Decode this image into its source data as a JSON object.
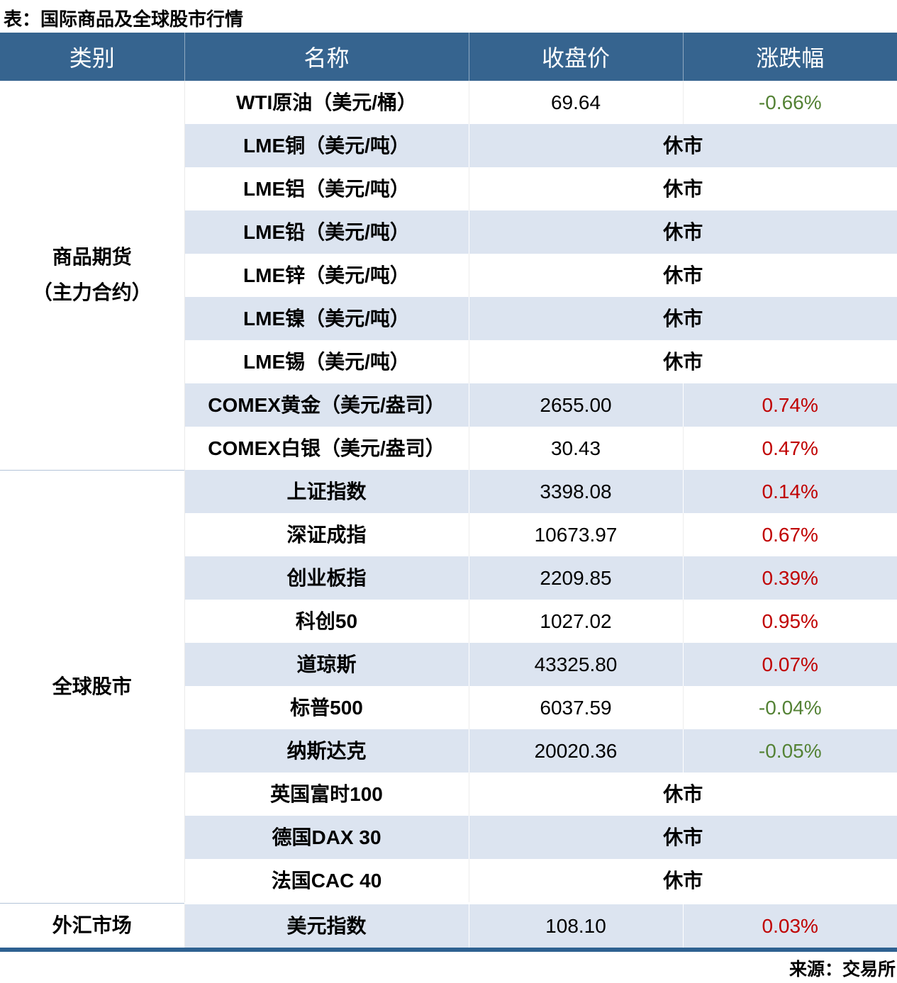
{
  "title": "表：国际商品及全球股市行情",
  "source": "来源：交易所",
  "colors": {
    "header_bg": "#36648F",
    "header_text": "#FFFFFF",
    "alt_row_bg": "#DCE4F0",
    "up_text": "#C00000",
    "down_text": "#548235",
    "bottom_bar": "#2E6191"
  },
  "table": {
    "headers": [
      "类别",
      "名称",
      "收盘价",
      "涨跌幅"
    ],
    "sections": [
      {
        "category_lines": [
          "商品期货",
          "（主力合约）"
        ],
        "rows": [
          {
            "name": "WTI原油（美元/桶）",
            "close": "69.64",
            "change": "-0.66%",
            "direction": "down"
          },
          {
            "name": "LME铜（美元/吨）",
            "status": "休市"
          },
          {
            "name": "LME铝（美元/吨）",
            "status": "休市"
          },
          {
            "name": "LME铅（美元/吨）",
            "status": "休市"
          },
          {
            "name": "LME锌（美元/吨）",
            "status": "休市"
          },
          {
            "name": "LME镍（美元/吨）",
            "status": "休市"
          },
          {
            "name": "LME锡（美元/吨）",
            "status": "休市"
          },
          {
            "name": "COMEX黄金（美元/盎司）",
            "close": "2655.00",
            "change": "0.74%",
            "direction": "up"
          },
          {
            "name": "COMEX白银（美元/盎司）",
            "close": "30.43",
            "change": "0.47%",
            "direction": "up"
          }
        ]
      },
      {
        "category_lines": [
          "全球股市"
        ],
        "rows": [
          {
            "name": "上证指数",
            "close": "3398.08",
            "change": "0.14%",
            "direction": "up"
          },
          {
            "name": "深证成指",
            "close": "10673.97",
            "change": "0.67%",
            "direction": "up"
          },
          {
            "name": "创业板指",
            "close": "2209.85",
            "change": "0.39%",
            "direction": "up"
          },
          {
            "name": "科创50",
            "close": "1027.02",
            "change": "0.95%",
            "direction": "up"
          },
          {
            "name": "道琼斯",
            "close": "43325.80",
            "change": "0.07%",
            "direction": "up"
          },
          {
            "name": "标普500",
            "close": "6037.59",
            "change": "-0.04%",
            "direction": "down"
          },
          {
            "name": "纳斯达克",
            "close": "20020.36",
            "change": "-0.05%",
            "direction": "down"
          },
          {
            "name": "英国富时100",
            "status": "休市"
          },
          {
            "name": "德国DAX 30",
            "status": "休市"
          },
          {
            "name": "法国CAC 40",
            "status": "休市"
          }
        ]
      },
      {
        "category_lines": [
          "外汇市场"
        ],
        "rows": [
          {
            "name": "美元指数",
            "close": "108.10",
            "change": "0.03%",
            "direction": "up"
          }
        ]
      }
    ]
  }
}
